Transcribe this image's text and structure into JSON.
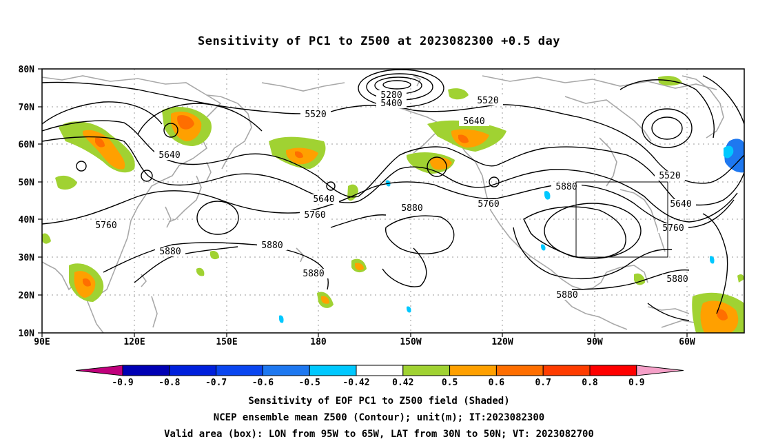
{
  "title": "Sensitivity of PC1 to Z500 at 2023082300 +0.5 day",
  "map": {
    "lat_labels": [
      "80N",
      "70N",
      "60N",
      "50N",
      "40N",
      "30N",
      "20N",
      "10N"
    ],
    "lon_labels": [
      "90E",
      "120E",
      "150E",
      "180",
      "150W",
      "120W",
      "90W",
      "60W"
    ],
    "contour_labels": [
      "5280",
      "5400",
      "5520",
      "5520",
      "5520",
      "5640",
      "5640",
      "5640",
      "5640",
      "5760",
      "5760",
      "5760",
      "5760",
      "5880",
      "5880",
      "5880",
      "5880",
      "5880",
      "5880",
      "5880"
    ],
    "valid_area_box": {
      "lon_min": -95,
      "lon_max": -65,
      "lat_min": 30,
      "lat_max": 50
    },
    "contour_color": "#000000",
    "coast_color": "#a8a8a8",
    "grid_style": "dotted"
  },
  "colorbar": {
    "tick_labels": [
      "-0.9",
      "-0.8",
      "-0.7",
      "-0.6",
      "-0.5",
      "-0.42",
      "0.42",
      "0.5",
      "0.6",
      "0.7",
      "0.8",
      "0.9"
    ],
    "colors": [
      "#c0007c",
      "#0000b4",
      "#0020dc",
      "#0a46f0",
      "#1e78f0",
      "#00c8ff",
      "#ffffff",
      "#a0d232",
      "#ffa000",
      "#ff6e00",
      "#ff3c00",
      "#ff0000",
      "#f5a0c8"
    ]
  },
  "captions": {
    "line1": "Sensitivity of EOF PC1 to Z500 field (Shaded)",
    "line2": "NCEP ensemble mean Z500 (Contour); unit(m); IT:2023082300",
    "line3": "Valid area (box): LON from 95W to 65W, LAT from 30N to 50N; VT: 2023082700"
  }
}
